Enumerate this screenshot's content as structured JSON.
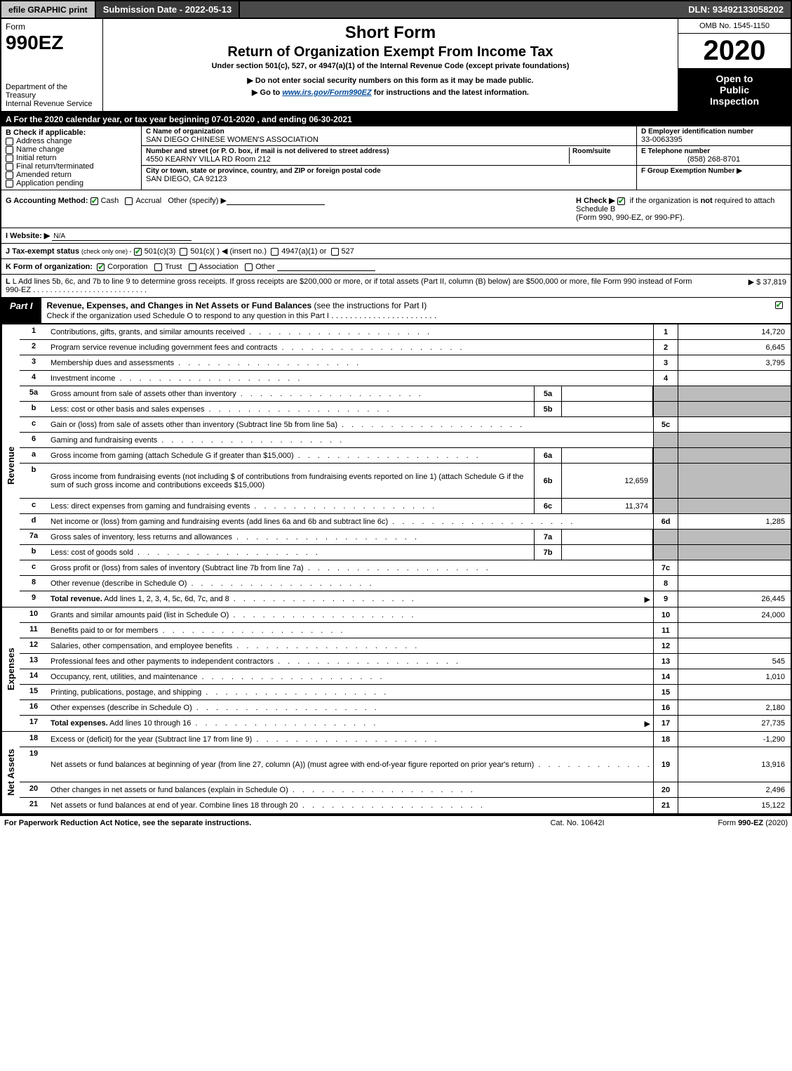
{
  "topbar": {
    "efile": "efile GRAPHIC print",
    "submission": "Submission Date - 2022-05-13",
    "dln": "DLN: 93492133058202"
  },
  "header": {
    "form_label": "Form",
    "form_number": "990EZ",
    "dept1": "Department of the Treasury",
    "dept2": "Internal Revenue Service",
    "title1": "Short Form",
    "title2": "Return of Organization Exempt From Income Tax",
    "subtitle": "Under section 501(c), 527, or 4947(a)(1) of the Internal Revenue Code (except private foundations)",
    "note1": "▶ Do not enter social security numbers on this form as it may be made public.",
    "note2_pre": "▶ Go to ",
    "note2_link": "www.irs.gov/Form990EZ",
    "note2_post": " for instructions and the latest information.",
    "omb": "OMB No. 1545-1150",
    "year": "2020",
    "inspect1": "Open to",
    "inspect2": "Public",
    "inspect3": "Inspection"
  },
  "period": "A For the 2020 calendar year, or tax year beginning 07-01-2020 , and ending 06-30-2021",
  "box_b": {
    "title": "B  Check if applicable:",
    "opts": [
      "Address change",
      "Name change",
      "Initial return",
      "Final return/terminated",
      "Amended return",
      "Application pending"
    ]
  },
  "box_c": {
    "name_label": "C Name of organization",
    "name": "SAN DIEGO CHINESE WOMEN'S ASSOCIATION",
    "street_label": "Number and street (or P. O. box, if mail is not delivered to street address)",
    "room_label": "Room/suite",
    "street": "4550 KEARNY VILLA RD Room 212",
    "city_label": "City or town, state or province, country, and ZIP or foreign postal code",
    "city": "SAN DIEGO, CA  92123"
  },
  "box_d": {
    "ein_label": "D Employer identification number",
    "ein": "33-0063395",
    "tel_label": "E Telephone number",
    "tel": "(858) 268-8701",
    "grp_label": "F Group Exemption Number  ▶"
  },
  "row_g": {
    "label": "G Accounting Method:",
    "cash": "Cash",
    "accrual": "Accrual",
    "other": "Other (specify) ▶",
    "h_label": "H  Check ▶",
    "h_text": "if the organization is ",
    "h_not": "not",
    "h_text2": " required to attach Schedule B",
    "h_text3": "(Form 990, 990-EZ, or 990-PF)."
  },
  "row_i": {
    "label": "I Website: ▶",
    "val": "N/A"
  },
  "row_j": {
    "label": "J Tax-exempt status",
    "sub": "(check only one) -",
    "o1": "501(c)(3)",
    "o2": "501(c)(   ) ◀ (insert no.)",
    "o3": "4947(a)(1) or",
    "o4": "527"
  },
  "row_k": {
    "label": "K Form of organization:",
    "o1": "Corporation",
    "o2": "Trust",
    "o3": "Association",
    "o4": "Other"
  },
  "row_l": {
    "text": "L Add lines 5b, 6c, and 7b to line 9 to determine gross receipts. If gross receipts are $200,000 or more, or if total assets (Part II, column (B) below) are $500,000 or more, file Form 990 instead of Form 990-EZ",
    "amount": "▶ $ 37,819"
  },
  "part1": {
    "tab": "Part I",
    "title": "Revenue, Expenses, and Changes in Net Assets or Fund Balances",
    "sub": "(see the instructions for Part I)",
    "check_line": "Check if the organization used Schedule O to respond to any question in this Part I"
  },
  "sections": {
    "revenue": "Revenue",
    "expenses": "Expenses",
    "netassets": "Net Assets"
  },
  "lines": [
    {
      "n": "1",
      "d": "Contributions, gifts, grants, and similar amounts received",
      "rn": "1",
      "v": "14,720"
    },
    {
      "n": "2",
      "d": "Program service revenue including government fees and contracts",
      "rn": "2",
      "v": "6,645"
    },
    {
      "n": "3",
      "d": "Membership dues and assessments",
      "rn": "3",
      "v": "3,795"
    },
    {
      "n": "4",
      "d": "Investment income",
      "rn": "4",
      "v": ""
    },
    {
      "n": "5a",
      "d": "Gross amount from sale of assets other than inventory",
      "sn": "5a",
      "sv": "",
      "shade": true
    },
    {
      "n": "b",
      "d": "Less: cost or other basis and sales expenses",
      "sn": "5b",
      "sv": "",
      "shade": true
    },
    {
      "n": "c",
      "d": "Gain or (loss) from sale of assets other than inventory (Subtract line 5b from line 5a)",
      "rn": "5c",
      "v": ""
    },
    {
      "n": "6",
      "d": "Gaming and fundraising events",
      "shade_full": true
    },
    {
      "n": "a",
      "d": "Gross income from gaming (attach Schedule G if greater than $15,000)",
      "sn": "6a",
      "sv": "",
      "shade": true
    },
    {
      "n": "b",
      "d": "Gross income from fundraising events (not including $                       of contributions from fundraising events reported on line 1) (attach Schedule G if the sum of such gross income and contributions exceeds $15,000)",
      "sn": "6b",
      "sv": "12,659",
      "shade": true,
      "tall": true
    },
    {
      "n": "c",
      "d": "Less: direct expenses from gaming and fundraising events",
      "sn": "6c",
      "sv": "11,374",
      "shade": true
    },
    {
      "n": "d",
      "d": "Net income or (loss) from gaming and fundraising events (add lines 6a and 6b and subtract line 6c)",
      "rn": "6d",
      "v": "1,285"
    },
    {
      "n": "7a",
      "d": "Gross sales of inventory, less returns and allowances",
      "sn": "7a",
      "sv": "",
      "shade": true
    },
    {
      "n": "b",
      "d": "Less: cost of goods sold",
      "sn": "7b",
      "sv": "",
      "shade": true
    },
    {
      "n": "c",
      "d": "Gross profit or (loss) from sales of inventory (Subtract line 7b from line 7a)",
      "rn": "7c",
      "v": ""
    },
    {
      "n": "8",
      "d": "Other revenue (describe in Schedule O)",
      "rn": "8",
      "v": ""
    },
    {
      "n": "9",
      "d": "Total revenue. Add lines 1, 2, 3, 4, 5c, 6d, 7c, and 8",
      "rn": "9",
      "v": "26,445",
      "bold": true,
      "arrow": true
    }
  ],
  "exp_lines": [
    {
      "n": "10",
      "d": "Grants and similar amounts paid (list in Schedule O)",
      "rn": "10",
      "v": "24,000"
    },
    {
      "n": "11",
      "d": "Benefits paid to or for members",
      "rn": "11",
      "v": ""
    },
    {
      "n": "12",
      "d": "Salaries, other compensation, and employee benefits",
      "rn": "12",
      "v": ""
    },
    {
      "n": "13",
      "d": "Professional fees and other payments to independent contractors",
      "rn": "13",
      "v": "545"
    },
    {
      "n": "14",
      "d": "Occupancy, rent, utilities, and maintenance",
      "rn": "14",
      "v": "1,010"
    },
    {
      "n": "15",
      "d": "Printing, publications, postage, and shipping",
      "rn": "15",
      "v": ""
    },
    {
      "n": "16",
      "d": "Other expenses (describe in Schedule O)",
      "rn": "16",
      "v": "2,180"
    },
    {
      "n": "17",
      "d": "Total expenses. Add lines 10 through 16",
      "rn": "17",
      "v": "27,735",
      "bold": true,
      "arrow": true
    }
  ],
  "na_lines": [
    {
      "n": "18",
      "d": "Excess or (deficit) for the year (Subtract line 17 from line 9)",
      "rn": "18",
      "v": "-1,290"
    },
    {
      "n": "19",
      "d": "Net assets or fund balances at beginning of year (from line 27, column (A)) (must agree with end-of-year figure reported on prior year's return)",
      "rn": "19",
      "v": "13,916",
      "tall": true
    },
    {
      "n": "20",
      "d": "Other changes in net assets or fund balances (explain in Schedule O)",
      "rn": "20",
      "v": "2,496"
    },
    {
      "n": "21",
      "d": "Net assets or fund balances at end of year. Combine lines 18 through 20",
      "rn": "21",
      "v": "15,122"
    }
  ],
  "footer": {
    "l": "For Paperwork Reduction Act Notice, see the separate instructions.",
    "c": "Cat. No. 10642I",
    "r": "Form 990-EZ (2020)"
  }
}
